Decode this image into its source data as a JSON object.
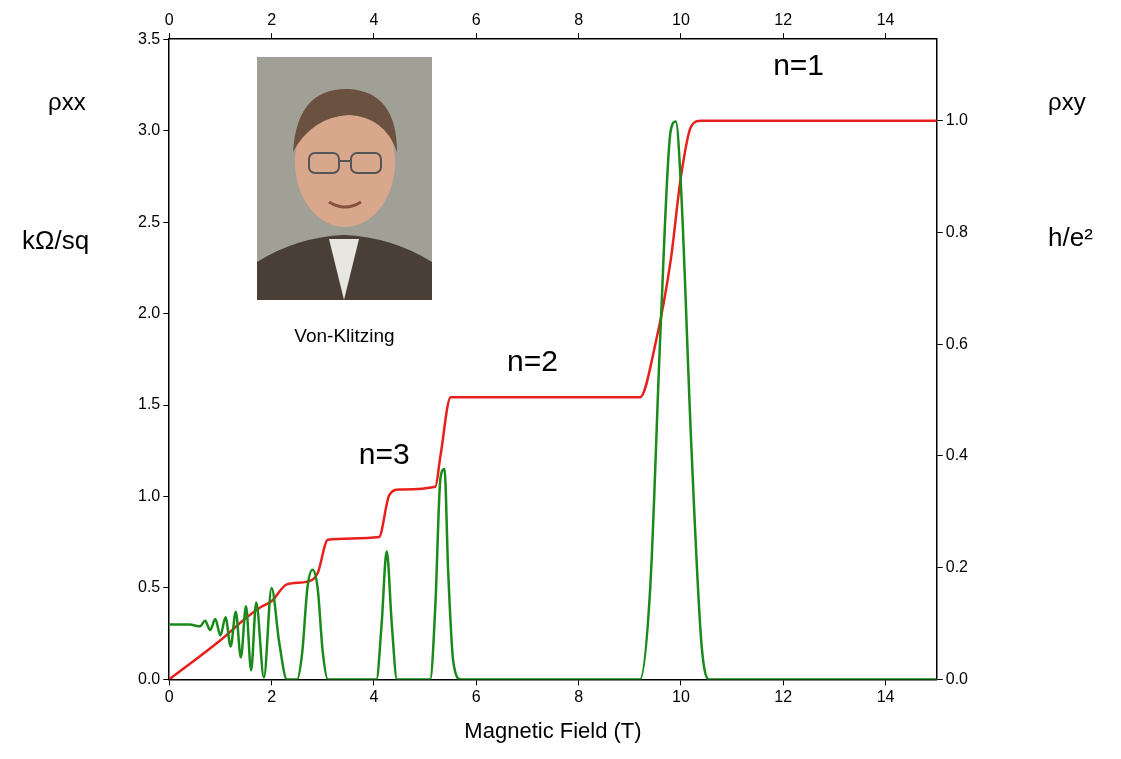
{
  "chart_data": {
    "type": "line",
    "x_label": "Magnetic Field (T)",
    "y_label": "ρxx",
    "y_unit": "kΩ/sq",
    "y2_label": "ρxy",
    "y2_unit": "h/e²",
    "image_caption": "Von-Klitzing",
    "xlim": [
      0,
      15
    ],
    "xticks": [
      0,
      2,
      4,
      6,
      8,
      10,
      12,
      14
    ],
    "ylim": [
      0,
      3.5
    ],
    "yticks": [
      {
        "value": 0,
        "label": "0.0"
      },
      {
        "value": 0.5,
        "label": "0.5"
      },
      {
        "value": 1,
        "label": "1.0"
      },
      {
        "value": 1.5,
        "label": "1.5"
      },
      {
        "value": 2,
        "label": "2.0"
      },
      {
        "value": 2.5,
        "label": "2.5"
      },
      {
        "value": 3,
        "label": "3.0"
      },
      {
        "value": 3.5,
        "label": "3.5"
      }
    ],
    "y2lim": [
      0,
      1.146
    ],
    "y2ticks": [
      {
        "value": 0,
        "label": "0.0"
      },
      {
        "value": 0.2,
        "label": "0.2"
      },
      {
        "value": 0.4,
        "label": "0.4"
      },
      {
        "value": 0.6,
        "label": "0.6"
      },
      {
        "value": 0.8,
        "label": "0.8"
      },
      {
        "value": 1,
        "label": "1.0"
      }
    ],
    "grid": false,
    "series": [
      {
        "name": "ρxx",
        "color": "#1a8a1a",
        "axis": "y",
        "x": [
          0,
          0.4,
          0.6,
          0.7,
          0.8,
          0.9,
          1.0,
          1.1,
          1.2,
          1.3,
          1.4,
          1.5,
          1.6,
          1.7,
          1.85,
          2.0,
          2.15,
          2.3,
          2.5,
          2.6,
          2.7,
          2.8,
          2.9,
          3.0,
          3.1,
          4.05,
          4.15,
          4.25,
          4.35,
          4.45,
          5.1,
          5.2,
          5.3,
          5.38,
          5.45,
          5.55,
          5.7,
          9.2,
          9.4,
          9.6,
          9.8,
          9.9,
          10.0,
          10.2,
          10.4,
          10.55,
          15
        ],
        "values": [
          0.3,
          0.3,
          0.29,
          0.32,
          0.27,
          0.33,
          0.24,
          0.34,
          0.18,
          0.37,
          0.12,
          0.4,
          0.05,
          0.42,
          0.01,
          0.5,
          0.2,
          0.0,
          0.0,
          0.15,
          0.5,
          0.6,
          0.5,
          0.15,
          0.0,
          0.0,
          0.3,
          0.7,
          0.3,
          0.0,
          0.0,
          0.4,
          1.1,
          1.15,
          0.6,
          0.1,
          0.0,
          0.0,
          0.5,
          1.9,
          3.0,
          3.05,
          2.7,
          1.3,
          0.2,
          0.0,
          0.0
        ]
      },
      {
        "name": "ρxy",
        "color": "#e8201c",
        "axis": "y2",
        "x": [
          0,
          1.0,
          1.5,
          1.8,
          2.0,
          2.3,
          2.7,
          2.9,
          3.1,
          4.1,
          4.3,
          4.5,
          5.2,
          5.3,
          5.5,
          9.2,
          9.5,
          9.8,
          10.0,
          10.2,
          10.4,
          15
        ],
        "values": [
          0,
          0.07,
          0.11,
          0.13,
          0.14,
          0.17,
          0.175,
          0.19,
          0.25,
          0.255,
          0.33,
          0.34,
          0.345,
          0.4,
          0.505,
          0.505,
          0.6,
          0.75,
          0.9,
          0.99,
          1.0,
          1.0
        ]
      }
    ],
    "annotations": [
      {
        "text": "n=1",
        "x": 12.3,
        "y": 1.096,
        "axis": "y2"
      },
      {
        "text": "n=2",
        "x": 7.1,
        "y": 0.566,
        "axis": "y2"
      },
      {
        "text": "n=3",
        "x": 4.2,
        "y": 0.4,
        "axis": "y2"
      }
    ]
  }
}
